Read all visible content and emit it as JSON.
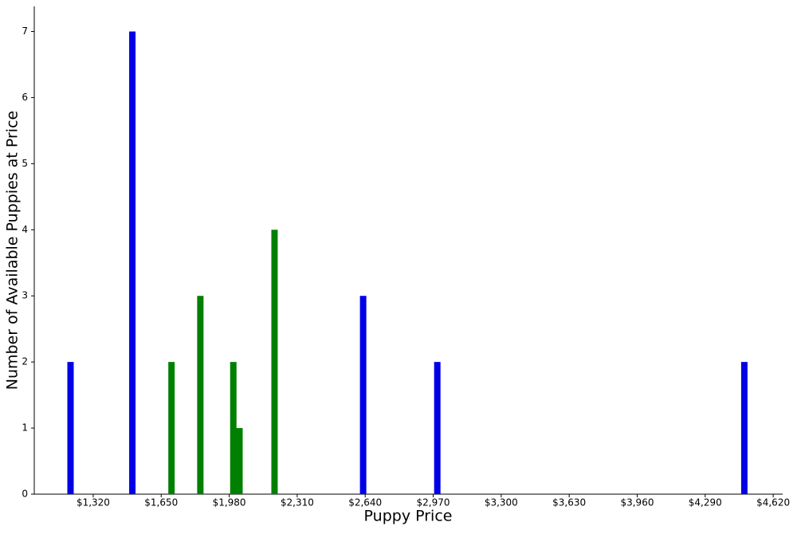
{
  "chart_data": {
    "type": "bar",
    "xlabel": "Puppy Price",
    "ylabel": "Number of Available Puppies at Price",
    "series": [
      {
        "color": "#0000e6",
        "x": [
          1210,
          1510,
          2630,
          2990,
          4480
        ],
        "values": [
          2,
          7,
          3,
          2,
          2
        ]
      },
      {
        "color": "#008000",
        "x": [
          1700,
          1840,
          2000,
          2030,
          2200
        ],
        "values": [
          2,
          3,
          2,
          1,
          4
        ]
      }
    ],
    "xlim": [
      1034,
      4666
    ],
    "xticks": [
      {
        "value": 1320,
        "label": "$1,320"
      },
      {
        "value": 1650,
        "label": "$1,650"
      },
      {
        "value": 1980,
        "label": "$1,980"
      },
      {
        "value": 2310,
        "label": "$2,310"
      },
      {
        "value": 2640,
        "label": "$2,640"
      },
      {
        "value": 2970,
        "label": "$2,970"
      },
      {
        "value": 3300,
        "label": "$3,300"
      },
      {
        "value": 3630,
        "label": "$3,630"
      },
      {
        "value": 3960,
        "label": "$3,960"
      },
      {
        "value": 4290,
        "label": "$4,290"
      },
      {
        "value": 4620,
        "label": "$4,620"
      }
    ],
    "ylim": [
      0,
      7.38
    ],
    "yticks": [
      0,
      1,
      2,
      3,
      4,
      5,
      6,
      7
    ]
  }
}
